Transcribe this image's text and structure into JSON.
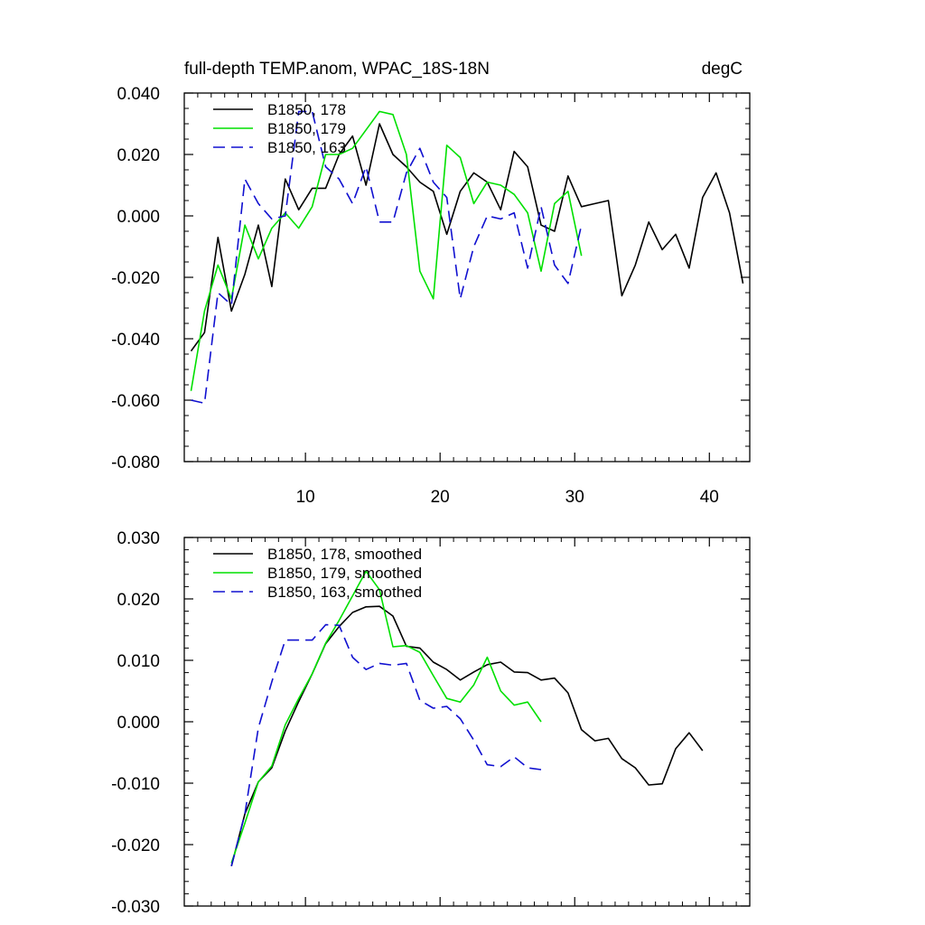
{
  "chart_data": [
    {
      "type": "line",
      "title": "full-depth TEMP.anom, WPAC_18S-18N",
      "units": "degC",
      "xlabel": "",
      "ylabel": "",
      "xlim": [
        1,
        43
      ],
      "ylim": [
        -0.08,
        0.04
      ],
      "yticks": [
        -0.08,
        -0.06,
        -0.04,
        -0.02,
        0.0,
        0.02,
        0.04
      ],
      "ytick_labels": [
        "-0.080",
        "-0.060",
        "-0.040",
        "-0.020",
        "0.000",
        "0.020",
        "0.040"
      ],
      "xticks": [
        10,
        20,
        30,
        40
      ],
      "xtick_labels": [
        "10",
        "20",
        "30",
        "40"
      ],
      "legend_position": "top-left",
      "series": [
        {
          "name": "B1850, 178",
          "color": "#000000",
          "dash": "solid",
          "x": [
            1.5,
            2.5,
            3.5,
            4.5,
            5.5,
            6.5,
            7.5,
            8.5,
            9.5,
            10.5,
            11.5,
            12.5,
            13.5,
            14.5,
            15.5,
            16.5,
            17.5,
            18.5,
            19.5,
            20.5,
            21.5,
            22.5,
            23.5,
            24.5,
            25.5,
            26.5,
            27.5,
            28.5,
            29.5,
            30.5,
            31.5,
            32.5,
            33.5,
            34.5,
            35.5,
            36.5,
            37.5,
            38.5,
            39.5,
            40.5,
            41.5,
            42.5
          ],
          "values": [
            -0.044,
            -0.038,
            -0.007,
            -0.031,
            -0.019,
            -0.003,
            -0.023,
            0.012,
            0.002,
            0.009,
            0.009,
            0.02,
            0.026,
            0.01,
            0.03,
            0.02,
            0.016,
            0.011,
            0.008,
            -0.006,
            0.008,
            0.014,
            0.011,
            0.002,
            0.021,
            0.016,
            -0.003,
            -0.005,
            0.013,
            0.003,
            0.004,
            0.005,
            -0.026,
            -0.016,
            -0.002,
            -0.011,
            -0.006,
            -0.017,
            0.006,
            0.014,
            0.001,
            -0.022
          ]
        },
        {
          "name": "B1850, 179",
          "color": "#00e000",
          "dash": "solid",
          "x": [
            1.5,
            2.5,
            3.5,
            4.5,
            5.5,
            6.5,
            7.5,
            8.5,
            9.5,
            10.5,
            11.5,
            12.5,
            13.5,
            14.5,
            15.5,
            16.5,
            17.5,
            18.5,
            19.5,
            20.5,
            21.5,
            22.5,
            23.5,
            24.5,
            25.5,
            26.5,
            27.5,
            28.5,
            29.5,
            30.5
          ],
          "values": [
            -0.057,
            -0.031,
            -0.016,
            -0.027,
            -0.003,
            -0.014,
            -0.004,
            0.001,
            -0.004,
            0.003,
            0.02,
            0.02,
            0.022,
            0.028,
            0.034,
            0.033,
            0.02,
            -0.018,
            -0.027,
            0.023,
            0.019,
            0.004,
            0.011,
            0.01,
            0.007,
            0.001,
            -0.018,
            0.004,
            0.008,
            -0.013
          ]
        },
        {
          "name": "B1850, 163",
          "color": "#1010d0",
          "dash": "dashed",
          "x": [
            1.5,
            2.5,
            3.5,
            4.5,
            5.5,
            6.5,
            7.5,
            8.5,
            9.5,
            10.5,
            11.5,
            12.5,
            13.5,
            14.5,
            15.5,
            16.5,
            17.5,
            18.5,
            19.5,
            20.5,
            21.5,
            22.5,
            23.5,
            24.5,
            25.5,
            26.5,
            27.5,
            28.5,
            29.5,
            30.5
          ],
          "values": [
            -0.06,
            -0.061,
            -0.025,
            -0.029,
            0.012,
            0.004,
            -0.001,
            0.0,
            0.034,
            0.034,
            0.016,
            0.012,
            0.004,
            0.016,
            -0.002,
            -0.002,
            0.014,
            0.022,
            0.011,
            0.006,
            -0.027,
            -0.01,
            0.0,
            -0.001,
            0.001,
            -0.017,
            0.003,
            -0.016,
            -0.022,
            -0.003
          ]
        }
      ]
    },
    {
      "type": "line",
      "title": "",
      "xlabel": "",
      "ylabel": "",
      "xlim": [
        1,
        43
      ],
      "ylim": [
        -0.03,
        0.03
      ],
      "yticks": [
        -0.03,
        -0.02,
        -0.01,
        0.0,
        0.01,
        0.02,
        0.03
      ],
      "ytick_labels": [
        "-0.030",
        "-0.020",
        "-0.010",
        "0.000",
        "0.010",
        "0.020",
        "0.030"
      ],
      "xticks": [
        10,
        20,
        30,
        40
      ],
      "xtick_labels": [],
      "legend_position": "top-left",
      "series": [
        {
          "name": "B1850, 178, smoothed",
          "color": "#000000",
          "dash": "solid",
          "x": [
            4.5,
            5.5,
            6.5,
            7.5,
            8.5,
            9.5,
            10.5,
            11.5,
            12.5,
            13.5,
            14.5,
            15.5,
            16.5,
            17.5,
            18.5,
            19.5,
            20.5,
            21.5,
            22.5,
            23.5,
            24.5,
            25.5,
            26.5,
            27.5,
            28.5,
            29.5,
            30.5,
            31.5,
            32.5,
            33.5,
            34.5,
            35.5,
            36.5,
            37.5,
            38.5,
            39.5
          ],
          "values": [
            -0.0235,
            -0.015,
            -0.0098,
            -0.0075,
            -0.0015,
            0.0033,
            0.0078,
            0.0127,
            0.0155,
            0.0178,
            0.0187,
            0.0188,
            0.0172,
            0.0123,
            0.012,
            0.0097,
            0.0085,
            0.0068,
            0.0081,
            0.0093,
            0.0097,
            0.0081,
            0.008,
            0.0068,
            0.0071,
            0.0047,
            -0.0013,
            -0.0031,
            -0.0027,
            -0.006,
            -0.0075,
            -0.0103,
            -0.0101,
            -0.0044,
            -0.0018,
            -0.0047
          ]
        },
        {
          "name": "B1850, 179, smoothed",
          "color": "#00e000",
          "dash": "solid",
          "x": [
            4.5,
            5.5,
            6.5,
            7.5,
            8.5,
            9.5,
            10.5,
            11.5,
            12.5,
            13.5,
            14.5,
            15.5,
            16.5,
            17.5,
            18.5,
            19.5,
            20.5,
            21.5,
            22.5,
            23.5,
            24.5,
            25.5,
            26.5,
            27.5
          ],
          "values": [
            -0.023,
            -0.0165,
            -0.0098,
            -0.0072,
            -0.0005,
            0.0038,
            0.0078,
            0.0128,
            0.0165,
            0.0205,
            0.0245,
            0.0215,
            0.0122,
            0.0124,
            0.0113,
            0.0075,
            0.0038,
            0.0032,
            0.006,
            0.0105,
            0.005,
            0.0027,
            0.0032,
            0.0
          ]
        },
        {
          "name": "B1850, 163, smoothed",
          "color": "#1010d0",
          "dash": "dashed",
          "x": [
            4.5,
            5.5,
            6.5,
            7.5,
            8.5,
            9.5,
            10.5,
            11.5,
            12.5,
            13.5,
            14.5,
            15.5,
            16.5,
            17.5,
            18.5,
            19.5,
            20.5,
            21.5,
            22.5,
            23.5,
            24.5,
            25.5,
            26.5,
            27.5
          ],
          "values": [
            -0.0235,
            -0.015,
            -0.001,
            0.0065,
            0.0133,
            0.0133,
            0.0133,
            0.0158,
            0.0157,
            0.0105,
            0.0085,
            0.0095,
            0.0092,
            0.0095,
            0.0035,
            0.0022,
            0.0025,
            0.0005,
            -0.003,
            -0.007,
            -0.0073,
            -0.0057,
            -0.0075,
            -0.0078
          ]
        }
      ]
    }
  ]
}
